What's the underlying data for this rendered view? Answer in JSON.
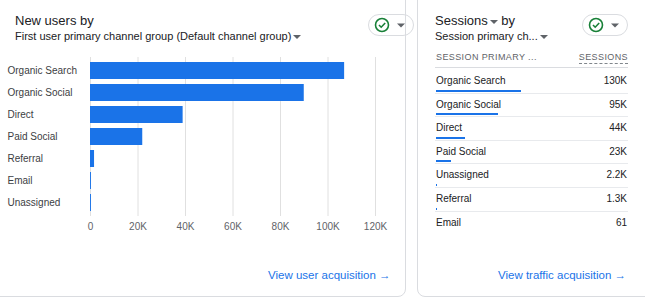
{
  "chart_data": {
    "type": "bar",
    "orientation": "horizontal",
    "title": "New users by",
    "subtitle": "First user primary channel group (Default channel group)",
    "categories": [
      "Organic Search",
      "Organic Social",
      "Direct",
      "Paid Social",
      "Referral",
      "Email",
      "Unassigned"
    ],
    "values": [
      107000,
      90000,
      39000,
      22000,
      1700,
      400,
      400
    ],
    "color": "#1a73e8",
    "xlim": [
      0,
      120000
    ],
    "xticks": [
      0,
      {
        "value": 20000,
        "label": "20K"
      },
      {
        "value": 40000,
        "label": "40K"
      },
      {
        "value": 60000,
        "label": "60K"
      },
      {
        "value": 80000,
        "label": "80K"
      },
      {
        "value": 100000,
        "label": "100K"
      },
      {
        "value": 120000,
        "label": "120K"
      }
    ],
    "grid": true
  },
  "left_link": "View user acquisition →",
  "table": {
    "title_metric": "Sessions",
    "title_suffix": "by",
    "dimension": "Session primary ch...",
    "columns": [
      "SESSION PRIMARY ...",
      "SESSIONS"
    ],
    "rows": [
      {
        "label": "Organic Search",
        "value": 130000,
        "value_label": "130K"
      },
      {
        "label": "Organic Social",
        "value": 95000,
        "value_label": "95K"
      },
      {
        "label": "Direct",
        "value": 44000,
        "value_label": "44K"
      },
      {
        "label": "Paid Social",
        "value": 23000,
        "value_label": "23K"
      },
      {
        "label": "Unassigned",
        "value": 2200,
        "value_label": "2.2K"
      },
      {
        "label": "Referral",
        "value": 1300,
        "value_label": "1.3K"
      },
      {
        "label": "Email",
        "value": 61,
        "value_label": "61"
      }
    ],
    "link": "View traffic acquisition →"
  }
}
